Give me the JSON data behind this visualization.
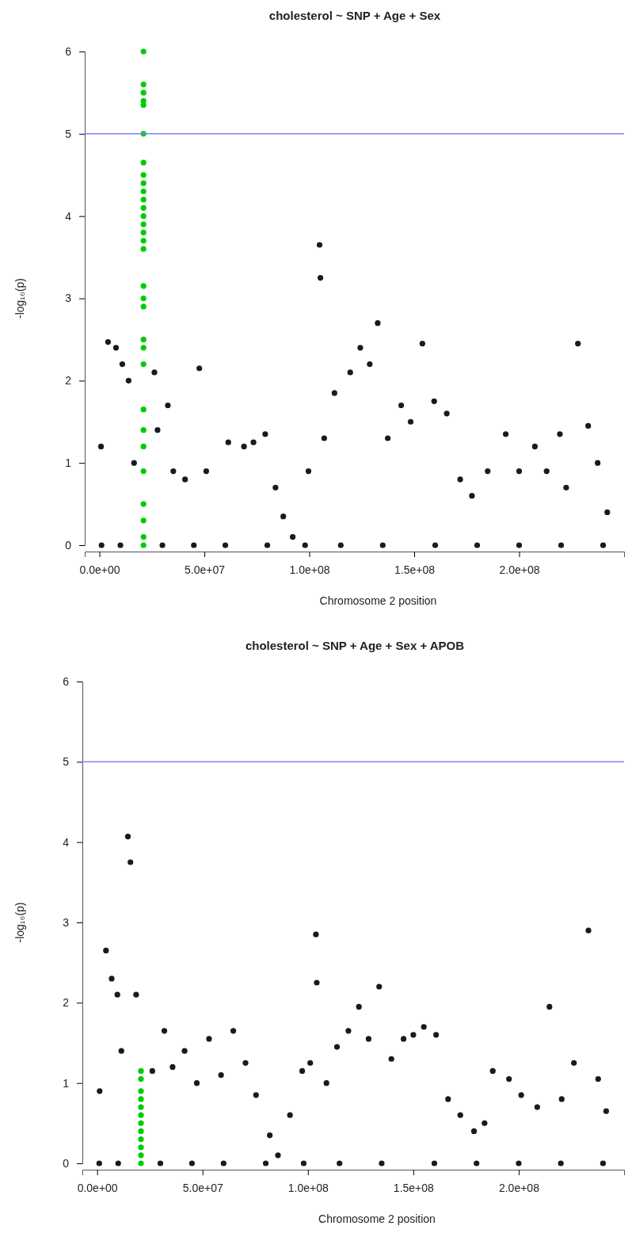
{
  "chart_data": [
    {
      "type": "scatter",
      "title": "cholesterol ~ SNP + Age + Sex",
      "xlabel": "Chromosome 2 position",
      "ylabel": "-log₁₀(p)",
      "xlim": [
        -7000000,
        250000000
      ],
      "xticks": [
        {
          "value": 0,
          "label": "0.0e+00"
        },
        {
          "value": 50000000,
          "label": "5.0e+07"
        },
        {
          "value": 100000000,
          "label": "1.0e+08"
        },
        {
          "value": 150000000,
          "label": "1.5e+08"
        },
        {
          "value": 200000000,
          "label": "2.0e+08"
        }
      ],
      "ylim": [
        0,
        6
      ],
      "yticks": [
        0,
        1,
        2,
        3,
        4,
        5,
        6
      ],
      "grid": false,
      "marker": "circle",
      "ref_lines": [
        {
          "axis": "y",
          "value": 5,
          "color": "#8080ff"
        }
      ],
      "series": [
        {
          "color": "#1a1a1a",
          "x": [
            750000,
            4100000,
            7900000,
            10900000,
            13900000,
            16500000,
            26200000,
            27700000,
            32600000,
            35200000,
            40800000,
            47600000,
            50900000,
            61400000,
            68900000,
            73400000,
            79000000,
            83900000,
            87600000,
            92100000,
            99600000,
            104900000,
            105300000,
            107100000,
            112000000,
            119500000,
            124300000,
            128800000,
            132600000,
            137400000,
            143800000,
            148300000,
            153900000,
            159500000,
            165500000,
            171900000,
            177500000,
            185000000,
            193600000,
            200000000,
            207500000,
            213100000,
            219400000,
            222400000,
            228000000,
            232900000,
            237400000,
            242000000,
            1000000,
            10000000,
            30000000,
            45000000,
            60000000,
            80000000,
            98000000,
            115000000,
            135000000,
            160000000,
            180000000,
            200000000,
            220000000,
            240000000
          ],
          "values": [
            1.2,
            2.47,
            2.4,
            2.2,
            2.0,
            1.0,
            2.1,
            1.4,
            1.7,
            0.9,
            0.8,
            2.15,
            0.9,
            1.25,
            1.2,
            1.25,
            1.35,
            0.7,
            0.35,
            0.1,
            0.9,
            3.65,
            3.25,
            1.3,
            1.85,
            2.1,
            2.4,
            2.2,
            2.7,
            1.3,
            1.7,
            1.5,
            2.45,
            1.75,
            1.6,
            0.8,
            0.6,
            0.9,
            1.35,
            0.9,
            1.2,
            0.9,
            1.35,
            0.7,
            2.45,
            1.45,
            1.0,
            0.4,
            0,
            0,
            0,
            0,
            0,
            0,
            0,
            0,
            0,
            0,
            0,
            0,
            0,
            0
          ]
        },
        {
          "color": "#00cc00",
          "x": [
            21000000,
            21000000,
            21000000,
            21000000,
            21000000,
            21000000,
            21000000,
            21000000,
            21000000,
            21000000,
            21000000,
            21000000,
            21000000,
            21000000,
            21000000,
            21000000,
            21000000,
            21000000,
            21000000,
            21000000,
            21000000,
            21000000,
            21000000,
            21000000,
            21000000,
            21000000,
            21000000,
            21000000,
            21000000,
            21000000,
            21000000
          ],
          "values": [
            6.0,
            5.6,
            5.5,
            5.4,
            5.35,
            5.0,
            4.65,
            4.5,
            4.4,
            4.3,
            4.2,
            4.1,
            4.0,
            3.9,
            3.8,
            3.7,
            3.6,
            3.15,
            3.0,
            2.9,
            2.5,
            2.4,
            2.2,
            1.65,
            1.4,
            1.2,
            0.9,
            0.5,
            0.3,
            0.1,
            0.0
          ]
        }
      ]
    },
    {
      "type": "scatter",
      "title": "cholesterol ~ SNP + Age + Sex + APOB",
      "xlabel": "Chromosome 2 position",
      "ylabel": "-log₁₀(p)",
      "xlim": [
        -7000000,
        250000000
      ],
      "xticks": [
        {
          "value": 0,
          "label": "0.0e+00"
        },
        {
          "value": 50000000,
          "label": "5.0e+07"
        },
        {
          "value": 100000000,
          "label": "1.0e+08"
        },
        {
          "value": 150000000,
          "label": "1.5e+08"
        },
        {
          "value": 200000000,
          "label": "2.0e+08"
        }
      ],
      "ylim": [
        0,
        6
      ],
      "yticks": [
        0,
        1,
        2,
        3,
        4,
        5,
        6
      ],
      "grid": false,
      "marker": "circle",
      "ref_lines": [
        {
          "axis": "y",
          "value": 5,
          "color": "#8080ff"
        }
      ],
      "series": [
        {
          "color": "#1a1a1a",
          "x": [
            1200000,
            4200000,
            6900000,
            9600000,
            11500000,
            14600000,
            15800000,
            18500000,
            26200000,
            31900000,
            35800000,
            41500000,
            47300000,
            53100000,
            58800000,
            64600000,
            70400000,
            75400000,
            81900000,
            85800000,
            91500000,
            97300000,
            101100000,
            103800000,
            104200000,
            108800000,
            113800000,
            119200000,
            124200000,
            128800000,
            133800000,
            139600000,
            145400000,
            150000000,
            155000000,
            160800000,
            166500000,
            172300000,
            178800000,
            183800000,
            187700000,
            195400000,
            201200000,
            208800000,
            214600000,
            220400000,
            226200000,
            233100000,
            237700000,
            241500000,
            1000000,
            10000000,
            30000000,
            45000000,
            60000000,
            80000000,
            98000000,
            115000000,
            135000000,
            160000000,
            180000000,
            200000000,
            220000000,
            240000000
          ],
          "values": [
            0.9,
            2.65,
            2.3,
            2.1,
            1.4,
            4.07,
            3.75,
            2.1,
            1.15,
            1.65,
            1.2,
            1.4,
            1.0,
            1.55,
            1.1,
            1.65,
            1.25,
            0.85,
            0.35,
            0.1,
            0.6,
            1.15,
            1.25,
            2.85,
            2.25,
            1.0,
            1.45,
            1.65,
            1.95,
            1.55,
            2.2,
            1.3,
            1.55,
            1.6,
            1.7,
            1.6,
            0.8,
            0.6,
            0.4,
            0.5,
            1.15,
            1.05,
            0.85,
            0.7,
            1.95,
            0.8,
            1.25,
            2.9,
            1.05,
            0.65,
            0,
            0,
            0,
            0,
            0,
            0,
            0,
            0,
            0,
            0,
            0,
            0,
            0,
            0
          ]
        },
        {
          "color": "#00cc00",
          "x": [
            20800000,
            20800000,
            20800000,
            20800000,
            20800000,
            20800000,
            20800000,
            20800000,
            20800000,
            20800000,
            20800000,
            20800000
          ],
          "values": [
            1.15,
            1.05,
            0.9,
            0.8,
            0.7,
            0.6,
            0.5,
            0.4,
            0.3,
            0.2,
            0.1,
            0
          ]
        }
      ]
    }
  ]
}
